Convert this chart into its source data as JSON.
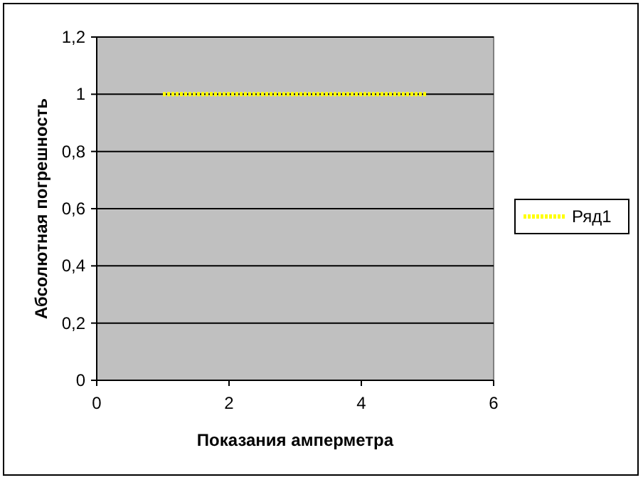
{
  "chart_data": {
    "type": "line",
    "xlabel": "Показания амперметра",
    "ylabel": "Абсолютная погрешность",
    "x": [
      1,
      5
    ],
    "series": [
      {
        "name": "Ряд1",
        "color": "#ffff00",
        "values": [
          1,
          1
        ]
      }
    ],
    "xlim": [
      0,
      6
    ],
    "xticks": [
      0,
      2,
      4,
      6
    ],
    "ylim": [
      0,
      1.2
    ],
    "yticks": [
      0,
      {
        "value": 0.2,
        "label": "0,2"
      },
      {
        "value": 0.4,
        "label": "0,4"
      },
      {
        "value": 0.6,
        "label": "0,6"
      },
      {
        "value": 0.8,
        "label": "0,8"
      },
      1,
      {
        "value": 1.2,
        "label": "1,2"
      }
    ],
    "grid": "y",
    "legend": "right",
    "marker": "none",
    "line_style": "dotted"
  }
}
